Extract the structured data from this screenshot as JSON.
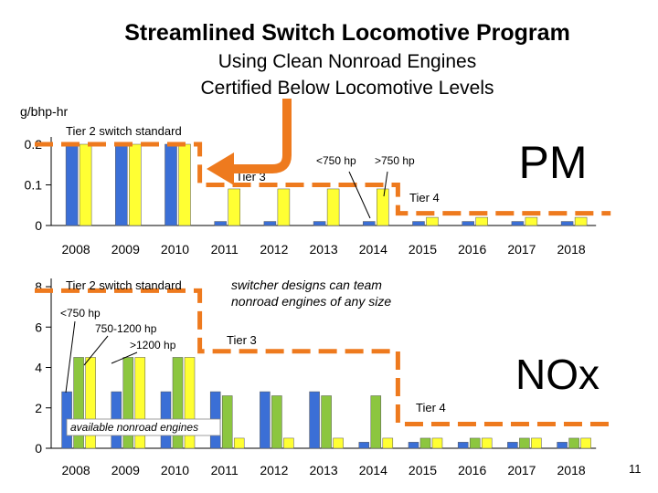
{
  "title": "Streamlined Switch Locomotive Program",
  "subtitle_line1": "Using Clean Nonroad Engines",
  "subtitle_line2": "Certified Below Locomotive Levels",
  "slide_number": "11",
  "colors": {
    "blue": "#3b6fd6",
    "yellow": "#ffff33",
    "green": "#8cc63f",
    "orange": "#ee7a1e",
    "axis": "#000000"
  },
  "chart_data": [
    {
      "type": "bar",
      "name_label": "PM",
      "ylabel": "g/bhp-hr",
      "categories": [
        "2008",
        "2009",
        "2010",
        "2011",
        "2012",
        "2013",
        "2014",
        "2015",
        "2016",
        "2017",
        "2018"
      ],
      "yticks": [
        "0",
        "0.1",
        "0.2"
      ],
      "ylim": [
        0,
        0.22
      ],
      "series": [
        {
          "name": "<750 hp",
          "color_key": "blue",
          "values": [
            0.2,
            0.2,
            0.2,
            0.01,
            0.01,
            0.01,
            0.01,
            0.01,
            0.01,
            0.01,
            0.01
          ]
        },
        {
          "name": ">750 hp",
          "color_key": "yellow",
          "values": [
            0.2,
            0.2,
            0.2,
            0.09,
            0.09,
            0.09,
            0.09,
            0.02,
            0.02,
            0.02,
            0.02
          ]
        }
      ],
      "standards": [
        {
          "label": "Tier 2 switch standard",
          "value": 0.2,
          "from": "2008",
          "to": "2010"
        },
        {
          "label": "Tier 3",
          "value": 0.1,
          "from": "2011",
          "to": "2014"
        },
        {
          "label": "Tier 4",
          "value": 0.03,
          "from": "2015",
          "to": "2018"
        }
      ],
      "annotations": [
        "<750 hp",
        ">750 hp"
      ]
    },
    {
      "type": "bar",
      "name_label": "NOx",
      "ylabel": "",
      "categories": [
        "2008",
        "2009",
        "2010",
        "2011",
        "2012",
        "2013",
        "2014",
        "2015",
        "2016",
        "2017",
        "2018"
      ],
      "yticks": [
        "0",
        "2",
        "4",
        "6",
        "8"
      ],
      "ylim": [
        0,
        8.8
      ],
      "series": [
        {
          "name": "<750 hp",
          "color_key": "blue",
          "values": [
            2.8,
            2.8,
            2.8,
            2.8,
            2.8,
            2.8,
            0.3,
            0.3,
            0.3,
            0.3,
            0.3
          ]
        },
        {
          "name": "750-1200 hp",
          "color_key": "green",
          "values": [
            4.5,
            4.5,
            4.5,
            2.6,
            2.6,
            2.6,
            2.6,
            0.5,
            0.5,
            0.5,
            0.5
          ]
        },
        {
          "name": ">1200 hp",
          "color_key": "yellow",
          "values": [
            4.5,
            4.5,
            4.5,
            0.5,
            0.5,
            0.5,
            0.5,
            0.5,
            0.5,
            0.5,
            0.5
          ]
        }
      ],
      "standards": [
        {
          "label": "Tier 2 switch standard",
          "value": 7.8,
          "from": "2008",
          "to": "2010"
        },
        {
          "label": "Tier 3",
          "value": 4.8,
          "from": "2011",
          "to": "2014"
        },
        {
          "label": "Tier 4",
          "value": 1.2,
          "from": "2015",
          "to": "2018"
        }
      ],
      "annotations": [
        "<750 hp",
        "750-1200 hp",
        ">1200 hp",
        "switcher designs can team nonroad engines of any size",
        "available nonroad engines"
      ]
    }
  ]
}
